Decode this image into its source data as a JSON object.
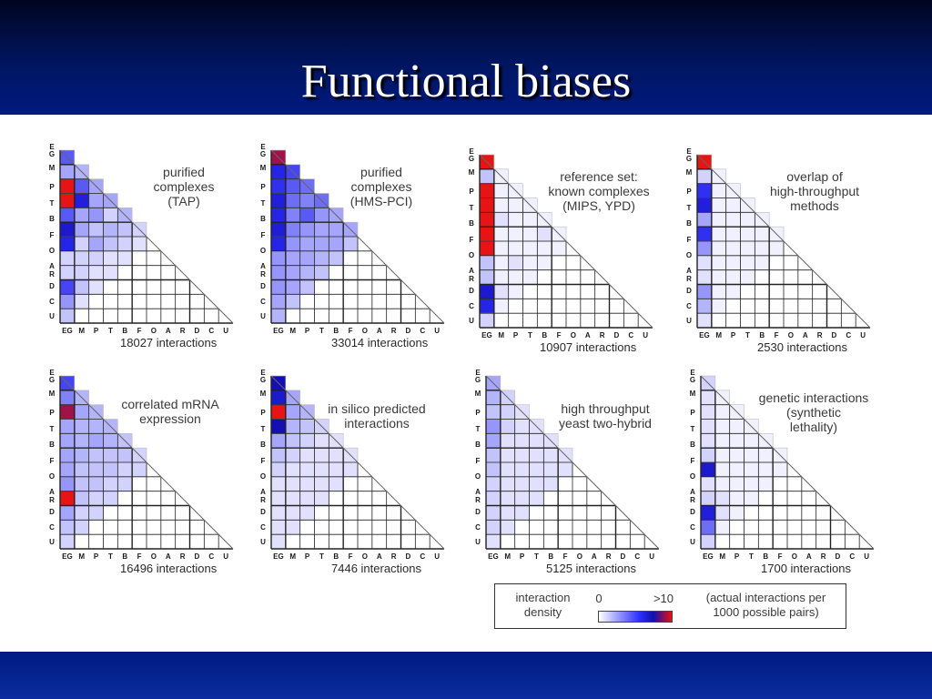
{
  "slide": {
    "title": "Functional biases"
  },
  "axis_labels": [
    "E",
    "G",
    "M",
    "P",
    "T",
    "B",
    "F",
    "O",
    "A",
    "R",
    "D",
    "C",
    "U"
  ],
  "axis_bottom_labels": [
    "EG",
    "M",
    "P",
    "T",
    "B",
    "F",
    "O",
    "A",
    "R",
    "D",
    "C",
    "U"
  ],
  "colors": {
    "low": "#ffffff",
    "mid": "#3030ff",
    "high_blue": "#1010b0",
    "max": "#e81010",
    "grid": "#222222",
    "title_bar": "#001560"
  },
  "panels": [
    {
      "caption": [
        "purified",
        "complexes",
        "(TAP)"
      ],
      "count": "18027 interactions",
      "density": [
        [
          0.5,
          0.2,
          0.2,
          0.25,
          0.2,
          0.2,
          0.15,
          0.1,
          0.1,
          0.1,
          0.15,
          0.1
        ],
        [
          0.3,
          0.25,
          0.3,
          0.2,
          0.25,
          0.2,
          0.15,
          0.1,
          0.15,
          0.1,
          0.1
        ],
        [
          1.0,
          0.5,
          0.3,
          0.3,
          0.25,
          0.15,
          0.2,
          0.15,
          0.15,
          0.1
        ],
        [
          1.0,
          0.7,
          0.3,
          0.3,
          0.15,
          0.2,
          0.15,
          0.15,
          0.1
        ],
        [
          0.5,
          0.3,
          0.35,
          0.15,
          0.25,
          0.2,
          0.2,
          0.1
        ],
        [
          0.75,
          0.3,
          0.2,
          0.25,
          0.2,
          0.15,
          0.1
        ],
        [
          0.65,
          0.15,
          0.3,
          0.2,
          0.15,
          0.1
        ],
        [
          0.15,
          0.15,
          0.15,
          0.1,
          0.1
        ],
        [
          0.15,
          0.15,
          0.1,
          0.1
        ],
        [
          0.55,
          0.2,
          0.1
        ],
        [
          0.35,
          0.1
        ],
        [
          0.2
        ]
      ]
    },
    {
      "caption": [
        "purified",
        "complexes",
        "(HMS-PCI)"
      ],
      "count": "33014 interactions",
      "density": [
        [
          0.95,
          0.7,
          0.6,
          0.55,
          0.5,
          0.5,
          0.45,
          0.4,
          0.35,
          0.3,
          0.4,
          0.3
        ],
        [
          0.65,
          0.55,
          0.5,
          0.5,
          0.45,
          0.45,
          0.4,
          0.35,
          0.3,
          0.3,
          0.25
        ],
        [
          0.6,
          0.5,
          0.45,
          0.4,
          0.45,
          0.35,
          0.3,
          0.3,
          0.3,
          0.2
        ],
        [
          0.7,
          0.45,
          0.4,
          0.45,
          0.35,
          0.3,
          0.3,
          0.3,
          0.2
        ],
        [
          0.65,
          0.4,
          0.5,
          0.35,
          0.3,
          0.3,
          0.3,
          0.2
        ],
        [
          0.72,
          0.4,
          0.35,
          0.3,
          0.3,
          0.3,
          0.2
        ],
        [
          0.65,
          0.35,
          0.3,
          0.3,
          0.3,
          0.2
        ],
        [
          0.35,
          0.3,
          0.3,
          0.25,
          0.2
        ],
        [
          0.35,
          0.3,
          0.25,
          0.2
        ],
        [
          0.35,
          0.3,
          0.2
        ],
        [
          0.3,
          0.2
        ],
        [
          0.25
        ]
      ]
    },
    {
      "caption": [
        "reference set:",
        "known complexes",
        "(MIPS, YPD)"
      ],
      "count": "10907 interactions",
      "density": [
        [
          1.0,
          0.1,
          0.05,
          0.05,
          0.05,
          0.05,
          0.05,
          0.05,
          0.05,
          0.05,
          0.05,
          0.05
        ],
        [
          0.2,
          0.05,
          0.05,
          0.05,
          0.05,
          0.05,
          0.05,
          0.05,
          0.05,
          0.05,
          0.05
        ],
        [
          1.0,
          0.05,
          0.05,
          0.05,
          0.05,
          0.05,
          0.05,
          0.05,
          0.05,
          0.05
        ],
        [
          1.0,
          0.05,
          0.05,
          0.05,
          0.05,
          0.05,
          0.05,
          0.05,
          0.05
        ],
        [
          1.0,
          0.1,
          0.05,
          0.05,
          0.05,
          0.05,
          0.1,
          0.05
        ],
        [
          1.0,
          0.05,
          0.05,
          0.05,
          0.1,
          0.05,
          0.05
        ],
        [
          1.0,
          0.05,
          0.05,
          0.05,
          0.05,
          0.05
        ],
        [
          0.2,
          0.05,
          0.1,
          0.05,
          0.05
        ],
        [
          0.2,
          0.05,
          0.05,
          0.05
        ],
        [
          0.75,
          0.1,
          0.05
        ],
        [
          0.65,
          0.05
        ],
        [
          0.15
        ]
      ]
    },
    {
      "caption": [
        "overlap of",
        "high-throughput",
        "methods"
      ],
      "count": "2530 interactions",
      "density": [
        [
          1.0,
          0.1,
          0.05,
          0.05,
          0.05,
          0.05,
          0.05,
          0.05,
          0.05,
          0.05,
          0.05,
          0.05
        ],
        [
          0.15,
          0.05,
          0.05,
          0.05,
          0.05,
          0.05,
          0.05,
          0.05,
          0.05,
          0.05,
          0.05
        ],
        [
          0.6,
          0.05,
          0.05,
          0.05,
          0.05,
          0.05,
          0.05,
          0.05,
          0.05,
          0.05
        ],
        [
          0.7,
          0.05,
          0.05,
          0.05,
          0.05,
          0.05,
          0.05,
          0.05,
          0.05
        ],
        [
          0.3,
          0.05,
          0.05,
          0.05,
          0.05,
          0.05,
          0.05,
          0.05
        ],
        [
          0.6,
          0.05,
          0.05,
          0.05,
          0.05,
          0.05,
          0.05
        ],
        [
          0.35,
          0.05,
          0.05,
          0.05,
          0.05,
          0.05
        ],
        [
          0.1,
          0.05,
          0.05,
          0.05,
          0.05
        ],
        [
          0.1,
          0.05,
          0.05,
          0.05
        ],
        [
          0.35,
          0.05,
          0.05
        ],
        [
          0.25,
          0.05
        ],
        [
          0.1
        ]
      ]
    },
    {
      "caption": [
        "correlated mRNA",
        "expression"
      ],
      "count": "16496 interactions",
      "density": [
        [
          0.55,
          0.3,
          0.25,
          0.25,
          0.3,
          0.25,
          0.25,
          0.2,
          0.2,
          0.2,
          0.2,
          0.15
        ],
        [
          0.4,
          0.25,
          0.3,
          0.25,
          0.25,
          0.25,
          0.2,
          0.2,
          0.2,
          0.2,
          0.15
        ],
        [
          0.95,
          0.3,
          0.25,
          0.25,
          0.25,
          0.2,
          0.2,
          0.2,
          0.15,
          0.15
        ],
        [
          0.3,
          0.25,
          0.25,
          0.25,
          0.2,
          0.2,
          0.2,
          0.15,
          0.15
        ],
        [
          0.3,
          0.25,
          0.3,
          0.25,
          0.2,
          0.15,
          0.15,
          0.15
        ],
        [
          0.3,
          0.25,
          0.2,
          0.2,
          0.2,
          0.15,
          0.15
        ],
        [
          0.3,
          0.2,
          0.2,
          0.2,
          0.15,
          0.15
        ],
        [
          0.35,
          0.2,
          0.2,
          0.15,
          0.15
        ],
        [
          1.0,
          0.2,
          0.15,
          0.15
        ],
        [
          0.3,
          0.15,
          0.15
        ],
        [
          0.2,
          0.15
        ],
        [
          0.15
        ]
      ]
    },
    {
      "caption": [
        "in silico predicted",
        "interactions"
      ],
      "count": "7446 interactions",
      "density": [
        [
          0.85,
          0.35,
          0.25,
          0.2,
          0.2,
          0.2,
          0.15,
          0.1,
          0.1,
          0.1,
          0.1,
          0.1
        ],
        [
          0.75,
          0.3,
          0.25,
          0.2,
          0.2,
          0.15,
          0.1,
          0.1,
          0.1,
          0.1,
          0.1
        ],
        [
          1.0,
          0.3,
          0.25,
          0.2,
          0.15,
          0.1,
          0.1,
          0.1,
          0.1,
          0.1
        ],
        [
          0.85,
          0.25,
          0.2,
          0.15,
          0.1,
          0.1,
          0.1,
          0.1,
          0.1
        ],
        [
          0.3,
          0.2,
          0.15,
          0.1,
          0.1,
          0.1,
          0.1,
          0.1
        ],
        [
          0.2,
          0.15,
          0.1,
          0.1,
          0.1,
          0.1,
          0.1
        ],
        [
          0.15,
          0.1,
          0.1,
          0.1,
          0.1,
          0.1
        ],
        [
          0.1,
          0.1,
          0.1,
          0.1,
          0.1
        ],
        [
          0.1,
          0.1,
          0.1,
          0.1
        ],
        [
          0.1,
          0.1,
          0.1
        ],
        [
          0.1,
          0.1
        ],
        [
          0.1
        ]
      ]
    },
    {
      "caption": [
        "high throughput",
        "yeast two-hybrid"
      ],
      "count": "5125 interactions",
      "density": [
        [
          0.3,
          0.15,
          0.15,
          0.1,
          0.1,
          0.1,
          0.1,
          0.1,
          0.1,
          0.1,
          0.1,
          0.1
        ],
        [
          0.25,
          0.15,
          0.15,
          0.1,
          0.1,
          0.1,
          0.1,
          0.1,
          0.1,
          0.1,
          0.1
        ],
        [
          0.2,
          0.15,
          0.1,
          0.1,
          0.1,
          0.1,
          0.1,
          0.1,
          0.1,
          0.1
        ],
        [
          0.35,
          0.15,
          0.1,
          0.1,
          0.1,
          0.1,
          0.1,
          0.1,
          0.1
        ],
        [
          0.3,
          0.1,
          0.1,
          0.1,
          0.1,
          0.1,
          0.1,
          0.1
        ],
        [
          0.2,
          0.1,
          0.1,
          0.1,
          0.1,
          0.1,
          0.1
        ],
        [
          0.2,
          0.1,
          0.1,
          0.1,
          0.1,
          0.1
        ],
        [
          0.15,
          0.1,
          0.1,
          0.1,
          0.1
        ],
        [
          0.15,
          0.1,
          0.1,
          0.1
        ],
        [
          0.15,
          0.1,
          0.1
        ],
        [
          0.15,
          0.1
        ],
        [
          0.1
        ]
      ]
    },
    {
      "caption": [
        "genetic interactions",
        "(synthetic",
        "lethality)"
      ],
      "count": "1700 interactions",
      "density": [
        [
          0.15,
          0.1,
          0.1,
          0.1,
          0.05,
          0.05,
          0.05,
          0.05,
          0.05,
          0.05,
          0.05,
          0.05
        ],
        [
          0.1,
          0.05,
          0.05,
          0.05,
          0.05,
          0.05,
          0.05,
          0.05,
          0.05,
          0.05,
          0.05
        ],
        [
          0.1,
          0.05,
          0.05,
          0.05,
          0.05,
          0.05,
          0.05,
          0.05,
          0.05,
          0.05
        ],
        [
          0.1,
          0.05,
          0.05,
          0.05,
          0.05,
          0.05,
          0.05,
          0.05,
          0.05
        ],
        [
          0.1,
          0.05,
          0.05,
          0.05,
          0.05,
          0.05,
          0.05,
          0.05
        ],
        [
          0.15,
          0.05,
          0.05,
          0.05,
          0.05,
          0.05,
          0.05
        ],
        [
          0.75,
          0.05,
          0.05,
          0.05,
          0.05,
          0.05
        ],
        [
          0.1,
          0.05,
          0.05,
          0.05,
          0.05
        ],
        [
          0.15,
          0.1,
          0.05,
          0.05
        ],
        [
          0.7,
          0.1,
          0.05
        ],
        [
          0.45,
          0.05
        ],
        [
          0.15
        ]
      ]
    }
  ],
  "legend": {
    "label": [
      "interaction",
      "density"
    ],
    "min": "0",
    "max": ">10",
    "note": [
      "(actual interactions per",
      "1000 possible pairs)"
    ]
  }
}
